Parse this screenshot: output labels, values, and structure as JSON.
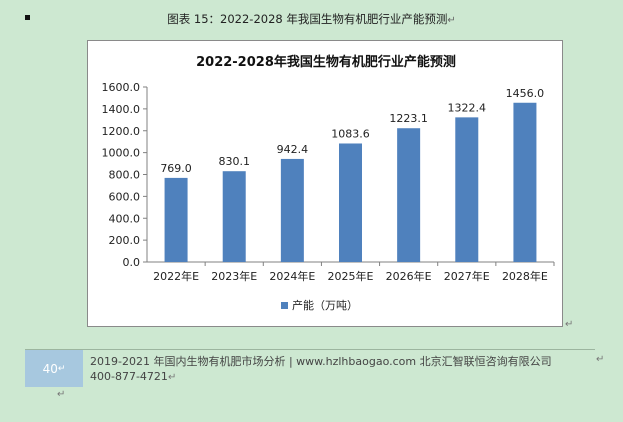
{
  "caption": "图表 15：2022-2028 年我国生物有机肥行业产能预测",
  "chart_data": {
    "type": "bar",
    "title": "2022-2028年我国生物有机肥行业产能预测",
    "categories": [
      "2022年E",
      "2023年E",
      "2024年E",
      "2025年E",
      "2026年E",
      "2027年E",
      "2028年E"
    ],
    "series": [
      {
        "name": "产能（万吨）",
        "values": [
          769.0,
          830.1,
          942.4,
          1083.6,
          1223.1,
          1322.4,
          1456.0
        ]
      }
    ],
    "value_labels": [
      "769.0",
      "830.1",
      "942.4",
      "1083.6",
      "1223.1",
      "1322.4",
      "1456.0"
    ],
    "ylim": [
      0,
      1600
    ],
    "yticks": [
      "0.0",
      "200.0",
      "400.0",
      "600.0",
      "800.0",
      "1000.0",
      "1200.0",
      "1400.0",
      "1600.0"
    ],
    "legend_position": "bottom",
    "bar_color": "#4f81bd",
    "grid": false
  },
  "footer": {
    "page_number": "40",
    "line1": "2019-2021 年国内生物有机肥市场分析 | www.hzlhbaogao.com 北京汇智联恒咨询有限公司",
    "line2": "400-877-4721"
  },
  "marks": {
    "paragraph": "↵"
  }
}
